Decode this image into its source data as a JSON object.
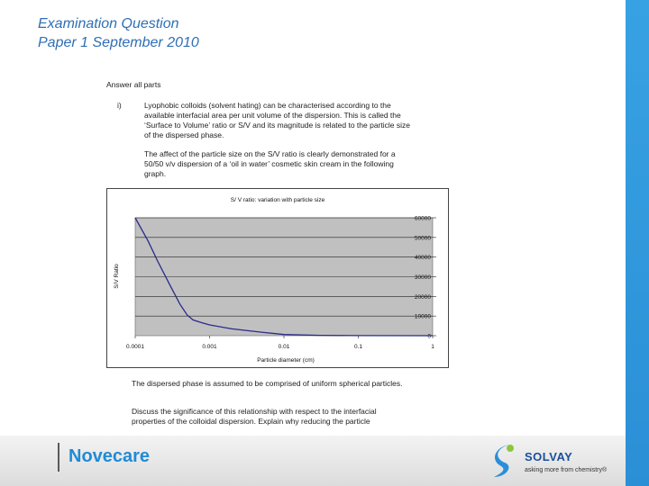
{
  "title": {
    "line1": "Examination Question",
    "line2": "Paper 1 September 2010"
  },
  "document": {
    "answer_all": "Answer all parts",
    "question_number": "i)",
    "paragraph1": "Lyophobic colloids (solvent hating) can be characterised according to the available interfacial area per unit volume of the dispersion. This is called the ‘Surface to Volume’ ratio or S/V and its magnitude is related to the particle size of the dispersed phase.",
    "paragraph2": "The affect of the particle size on the S/V ratio is clearly demonstrated for a 50/50 v/v dispersion of a ‘oil in water’ cosmetic skin cream in the following graph.",
    "paragraph3": "The dispersed phase is assumed to be comprised of uniform spherical particles.",
    "paragraph4": "Discuss the significance of this relationship with respect to the interfacial properties of the colloidal dispersion. Explain why reducing the particle"
  },
  "chart_data": {
    "type": "line",
    "title": "S/ V ratio: variation with particle size",
    "xlabel": "Particle diameter (cm)",
    "ylabel": "S/V Ratio",
    "x_scale": "log",
    "xlim": [
      0.0001,
      1
    ],
    "ylim": [
      0,
      60000
    ],
    "x_ticks": [
      "0.0001",
      "0.001",
      "0.01",
      "0.1",
      "1"
    ],
    "y_ticks": [
      "60000",
      "50000",
      "40000",
      "30000",
      "20000",
      "10000",
      "0"
    ],
    "grid": true,
    "plot_background": "#c0c0c0",
    "series": [
      {
        "color": "#2a2a8c",
        "x": [
          0.0001,
          0.00015,
          0.0002,
          0.0003,
          0.0004,
          0.0005,
          0.0006,
          0.0008,
          0.001,
          0.002,
          0.005,
          0.01,
          0.03,
          0.1,
          1
        ],
        "y": [
          60000,
          48000,
          38000,
          25000,
          16000,
          10500,
          8000,
          6500,
          5500,
          3500,
          1800,
          600,
          200,
          60,
          6
        ]
      }
    ]
  },
  "footer": {
    "brand": "Novecare",
    "company": "SOLVAY",
    "tagline": "asking more from chemistry®",
    "brand_color": "#1f8bd6",
    "company_color": "#1a4f9a"
  }
}
